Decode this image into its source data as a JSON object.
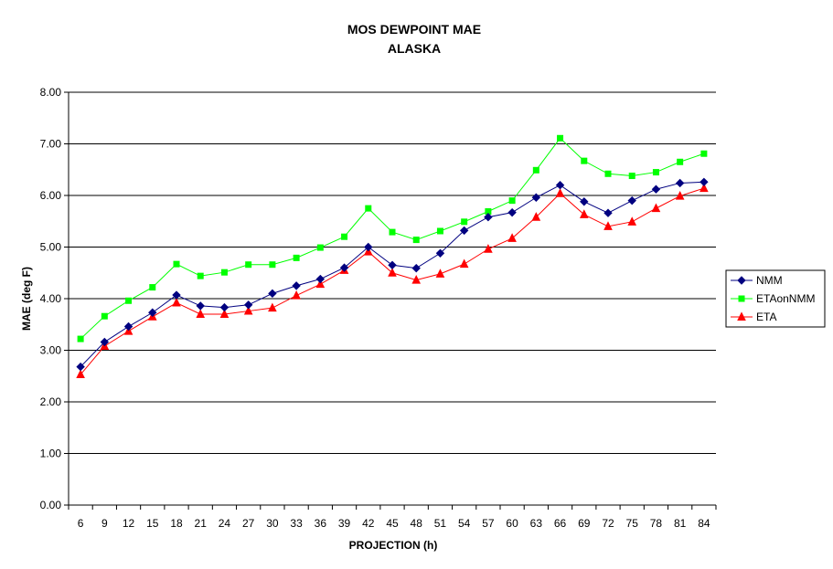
{
  "chart_data": {
    "type": "line",
    "title": "MOS DEWPOINT MAE",
    "subtitle": "ALASKA",
    "xlabel": "PROJECTION (h)",
    "ylabel": "MAE (deg F)",
    "ylim": [
      0,
      8
    ],
    "y_ticks": [
      "0.00",
      "1.00",
      "2.00",
      "3.00",
      "4.00",
      "5.00",
      "6.00",
      "7.00",
      "8.00"
    ],
    "categories": [
      "6",
      "9",
      "12",
      "15",
      "18",
      "21",
      "24",
      "27",
      "30",
      "33",
      "36",
      "39",
      "42",
      "45",
      "48",
      "51",
      "54",
      "57",
      "60",
      "63",
      "66",
      "69",
      "72",
      "75",
      "78",
      "81",
      "84"
    ],
    "grid": true,
    "legend_position": "right",
    "series": [
      {
        "name": "NMM",
        "color": "#000080",
        "marker": "diamond",
        "values": [
          2.68,
          3.16,
          3.46,
          3.73,
          4.07,
          3.86,
          3.83,
          3.88,
          4.1,
          4.25,
          4.38,
          4.6,
          5.0,
          4.65,
          4.59,
          4.88,
          5.32,
          5.58,
          5.67,
          5.96,
          6.2,
          5.88,
          5.66,
          5.9,
          6.12,
          6.24,
          6.26
        ]
      },
      {
        "name": "ETAonNMM",
        "color": "#00ff00",
        "marker": "square",
        "values": [
          3.22,
          3.66,
          3.96,
          4.22,
          4.67,
          4.44,
          4.51,
          4.66,
          4.66,
          4.79,
          4.99,
          5.2,
          5.75,
          5.29,
          5.14,
          5.31,
          5.49,
          5.69,
          5.9,
          6.49,
          7.11,
          6.67,
          6.42,
          6.38,
          6.45,
          6.65,
          6.81
        ]
      },
      {
        "name": "ETA",
        "color": "#ff0000",
        "marker": "triangle",
        "values": [
          2.53,
          3.08,
          3.37,
          3.65,
          3.92,
          3.7,
          3.7,
          3.76,
          3.82,
          4.06,
          4.28,
          4.55,
          4.91,
          4.5,
          4.36,
          4.48,
          4.67,
          4.96,
          5.17,
          5.58,
          6.04,
          5.63,
          5.4,
          5.49,
          5.75,
          5.99,
          6.14
        ]
      }
    ]
  }
}
